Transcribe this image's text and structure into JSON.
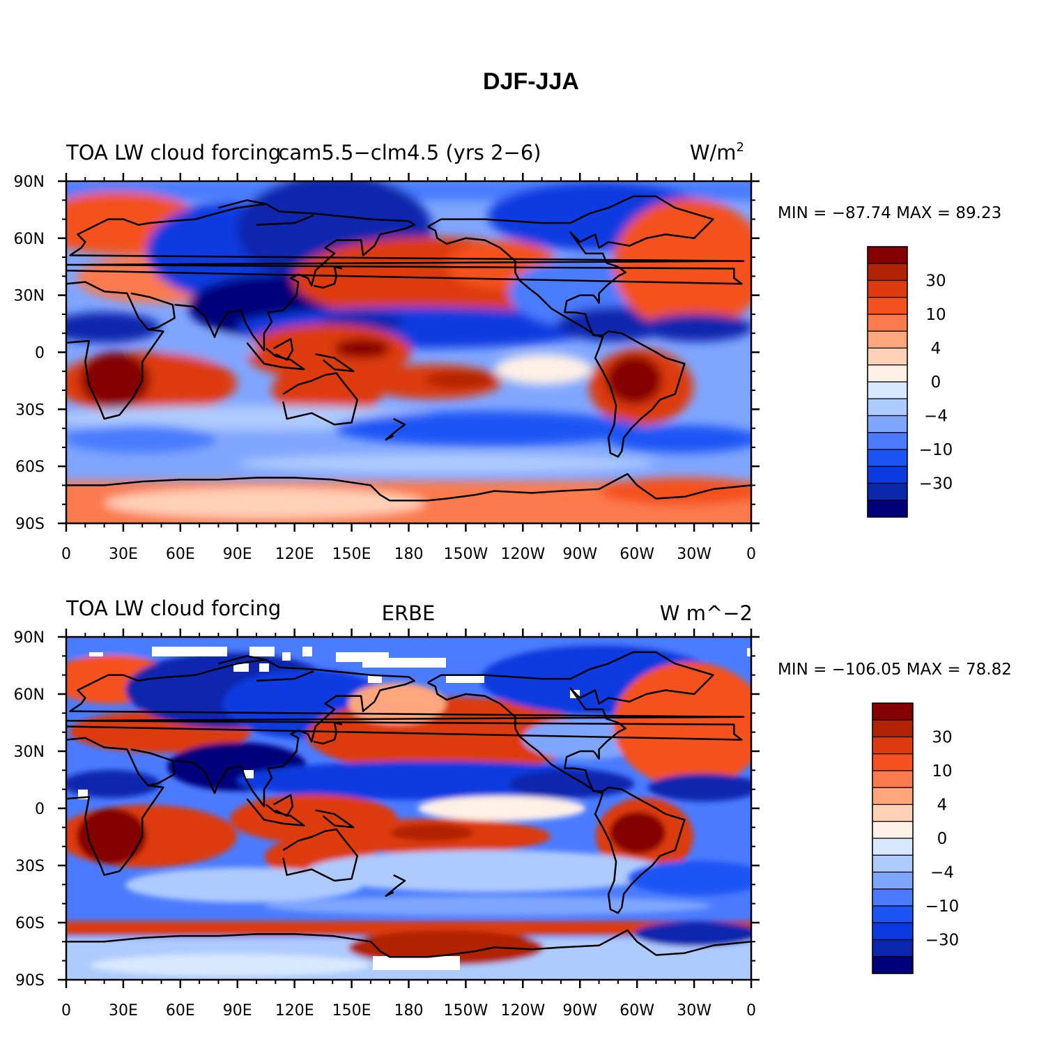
{
  "figure_title": "DJF-JJA",
  "colors": {
    "levels": [
      "#00007a",
      "#0a26ad",
      "#0a3ae0",
      "#1c54f5",
      "#4a7bff",
      "#7fa6ff",
      "#aecbff",
      "#d8e8ff",
      "#fff0e6",
      "#ffd2b8",
      "#ffa67d",
      "#fb7a4d",
      "#f4511f",
      "#dd3a10",
      "#b12304",
      "#850000"
    ],
    "coast": "#000000",
    "missing": "#ffffff"
  },
  "chart_data": [
    {
      "type": "heatmap",
      "map": "global-lat-lon",
      "left_title": "TOA LW cloud forcing",
      "center_title": "cam5.5−clm4.5 (yrs 2−6)",
      "units_text": "W/m",
      "units_sup": "2",
      "stats": "MIN = −87.74  MAX =  89.23",
      "min": -87.74,
      "max": 89.23,
      "legend_labels": [
        "30",
        "10",
        "4",
        "0",
        "−4",
        "−10",
        "−30"
      ],
      "x_ticks": [
        "0",
        "30E",
        "60E",
        "90E",
        "120E",
        "150E",
        "180",
        "150W",
        "120W",
        "90W",
        "60W",
        "30W",
        "0"
      ],
      "y_ticks": [
        "90N",
        "60N",
        "30N",
        "0",
        "30S",
        "60S",
        "90S"
      ],
      "xlim": [
        0,
        360
      ],
      "ylim": [
        -90,
        90
      ]
    },
    {
      "type": "heatmap",
      "map": "global-lat-lon",
      "left_title": "TOA LW cloud forcing",
      "center_title": "ERBE",
      "units_text": "W m^−2",
      "units_sup": "",
      "stats": "MIN = −106.05  MAX =  78.82",
      "min": -106.05,
      "max": 78.82,
      "legend_labels": [
        "30",
        "10",
        "4",
        "0",
        "−4",
        "−10",
        "−30"
      ],
      "x_ticks": [
        "0",
        "30E",
        "60E",
        "90E",
        "120E",
        "150E",
        "180",
        "150W",
        "120W",
        "90W",
        "60W",
        "30W",
        "0"
      ],
      "y_ticks": [
        "90N",
        "60N",
        "30N",
        "0",
        "30S",
        "60S",
        "90S"
      ],
      "xlim": [
        0,
        360
      ],
      "ylim": [
        -90,
        90
      ]
    }
  ]
}
